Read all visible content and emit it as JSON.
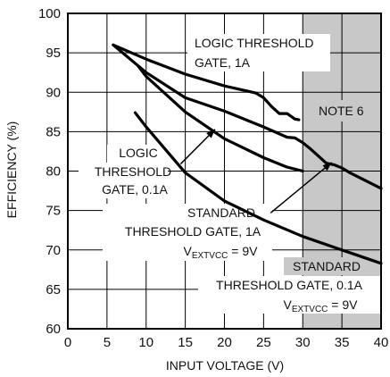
{
  "chart_data": {
    "type": "line",
    "xlabel": "INPUT VOLTAGE (V)",
    "ylabel": "EFFICIENCY (%)",
    "xlim": [
      0,
      40
    ],
    "ylim": [
      60,
      100
    ],
    "xticks": [
      "0",
      "5",
      "10",
      "15",
      "20",
      "25",
      "30",
      "35",
      "40"
    ],
    "yticks": [
      "60",
      "65",
      "70",
      "75",
      "80",
      "85",
      "90",
      "95",
      "100"
    ],
    "grid": true,
    "shaded_region": {
      "x_from": 30,
      "x_to": 40,
      "color": "#c8c8c8"
    },
    "colors": {
      "line": "#000000",
      "grid": "#000000",
      "shade": "#c8c8c8"
    },
    "series": [
      {
        "name": "LOGIC THRESHOLD GATE, 1A",
        "x": [
          5.8,
          10,
          15,
          20,
          24,
          25,
          26,
          27,
          28,
          29,
          29.5
        ],
        "y": [
          96,
          94.2,
          92.3,
          90.8,
          89.9,
          89.3,
          88.2,
          87.3,
          87.3,
          86.6,
          86.5
        ]
      },
      {
        "name": "STANDARD THRESHOLD GATE, 1A, VEXTVCC = 9V",
        "x": [
          5.8,
          10,
          15,
          20,
          25,
          28,
          29,
          30,
          31,
          32,
          33,
          34,
          35,
          36,
          38,
          40
        ],
        "y": [
          96,
          92.5,
          89.3,
          87.6,
          85.6,
          84.3,
          84.2,
          83.6,
          82.8,
          81.9,
          81,
          80.8,
          80.4,
          79.8,
          78.8,
          77.8
        ]
      },
      {
        "name": "LOGIC THRESHOLD GATE, 0.1A",
        "x": [
          9,
          10,
          15,
          20,
          25,
          28,
          30
        ],
        "y": [
          93.3,
          92,
          87.5,
          84.1,
          81.7,
          80.5,
          80
        ]
      },
      {
        "name": "STANDARD THRESHOLD GATE, 0.1A, VEXTVCC = 9V",
        "x": [
          8.6,
          10,
          15,
          20,
          25,
          30,
          35,
          40
        ],
        "y": [
          87.4,
          85.6,
          79.8,
          76.2,
          73.8,
          71.7,
          70,
          68.3
        ]
      }
    ],
    "annotations": {
      "logic_1a": [
        "LOGIC THRESHOLD",
        "GATE, 1A"
      ],
      "note": "NOTE 6",
      "logic_01a": [
        "LOGIC",
        "THRESHOLD",
        "GATE, 0.1A"
      ],
      "standard_1a": [
        "STANDARD",
        "THRESHOLD GATE, 1A"
      ],
      "vext_1a": {
        "main": "V",
        "sub": "EXTVCC",
        "rest": " = 9V"
      },
      "standard_01a": [
        "STANDARD",
        "THRESHOLD GATE, 0.1A"
      ],
      "vext_01a": {
        "main": "V",
        "sub": "EXTVCC",
        "rest": " = 9V"
      }
    }
  }
}
